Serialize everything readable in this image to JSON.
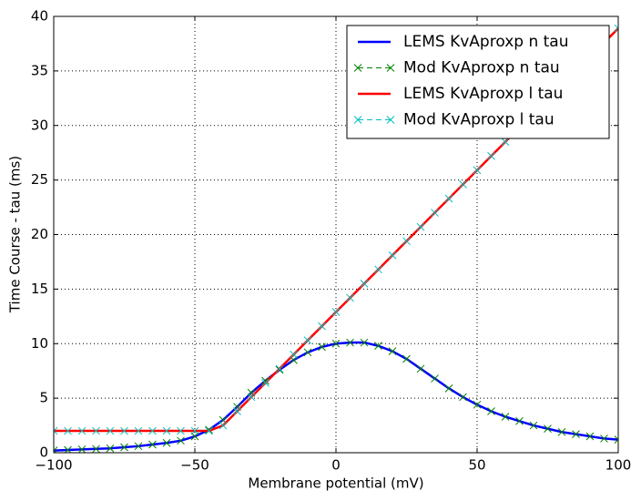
{
  "chart_data": {
    "type": "line",
    "x_label": "Membrane potential (mV)",
    "y_label": "Time Course - tau (ms)",
    "x": [
      -100,
      -95,
      -90,
      -85,
      -80,
      -75,
      -70,
      -65,
      -60,
      -55,
      -50,
      -45,
      -40,
      -35,
      -30,
      -25,
      -20,
      -15,
      -10,
      -5,
      0,
      5,
      10,
      15,
      20,
      25,
      30,
      35,
      40,
      45,
      50,
      55,
      60,
      65,
      70,
      75,
      80,
      85,
      90,
      95,
      100
    ],
    "series": [
      {
        "name": "LEMS KvAproxp n tau",
        "color": "#0000ff",
        "style": "line",
        "values": [
          0.2,
          0.25,
          0.3,
          0.35,
          0.4,
          0.5,
          0.6,
          0.75,
          0.9,
          1.1,
          1.5,
          2.1,
          3.0,
          4.2,
          5.5,
          6.6,
          7.6,
          8.5,
          9.2,
          9.7,
          10.0,
          10.1,
          10.1,
          9.8,
          9.3,
          8.6,
          7.7,
          6.8,
          5.9,
          5.1,
          4.4,
          3.8,
          3.3,
          2.9,
          2.5,
          2.2,
          1.9,
          1.7,
          1.5,
          1.3,
          1.2
        ]
      },
      {
        "name": "Mod KvAproxp n tau",
        "color": "#008000",
        "style": "markers",
        "values": [
          0.2,
          0.25,
          0.3,
          0.35,
          0.4,
          0.5,
          0.6,
          0.75,
          0.9,
          1.1,
          1.5,
          2.1,
          3.0,
          4.2,
          5.5,
          6.6,
          7.6,
          8.5,
          9.2,
          9.7,
          10.0,
          10.1,
          10.1,
          9.8,
          9.3,
          8.6,
          7.7,
          6.8,
          5.9,
          5.1,
          4.4,
          3.8,
          3.3,
          2.9,
          2.5,
          2.2,
          1.9,
          1.7,
          1.5,
          1.3,
          1.2
        ]
      },
      {
        "name": "LEMS KvAproxp l tau",
        "color": "#ff0000",
        "style": "line",
        "values": [
          2,
          2,
          2,
          2,
          2,
          2,
          2,
          2,
          2,
          2,
          2,
          2,
          2.5,
          3.8,
          5.1,
          6.4,
          7.7,
          9.0,
          10.3,
          11.6,
          12.9,
          14.2,
          15.5,
          16.8,
          18.1,
          19.4,
          20.7,
          22.0,
          23.3,
          24.6,
          25.9,
          27.2,
          28.5,
          29.8,
          31.1,
          32.4,
          33.7,
          35.0,
          36.3,
          37.6,
          38.9
        ]
      },
      {
        "name": "Mod KvAproxp l tau",
        "color": "#00bfbf",
        "style": "markers",
        "values": [
          2,
          2,
          2,
          2,
          2,
          2,
          2,
          2,
          2,
          2,
          2,
          2,
          2.5,
          3.8,
          5.1,
          6.4,
          7.7,
          9.0,
          10.3,
          11.6,
          12.9,
          14.2,
          15.5,
          16.8,
          18.1,
          19.4,
          20.7,
          22.0,
          23.3,
          24.6,
          25.9,
          27.2,
          28.5,
          29.8,
          31.1,
          32.4,
          33.7,
          35.0,
          36.3,
          37.6,
          38.9
        ]
      }
    ],
    "xlim": [
      -100,
      100
    ],
    "xticks": [
      {
        "value": -100,
        "label": "−100"
      },
      {
        "value": -50,
        "label": "−50"
      },
      0,
      50,
      100
    ],
    "ylim": [
      0,
      40
    ],
    "yticks": [
      0,
      5,
      10,
      15,
      20,
      25,
      30,
      35,
      40
    ],
    "grid": true,
    "legend": "upper-right"
  }
}
